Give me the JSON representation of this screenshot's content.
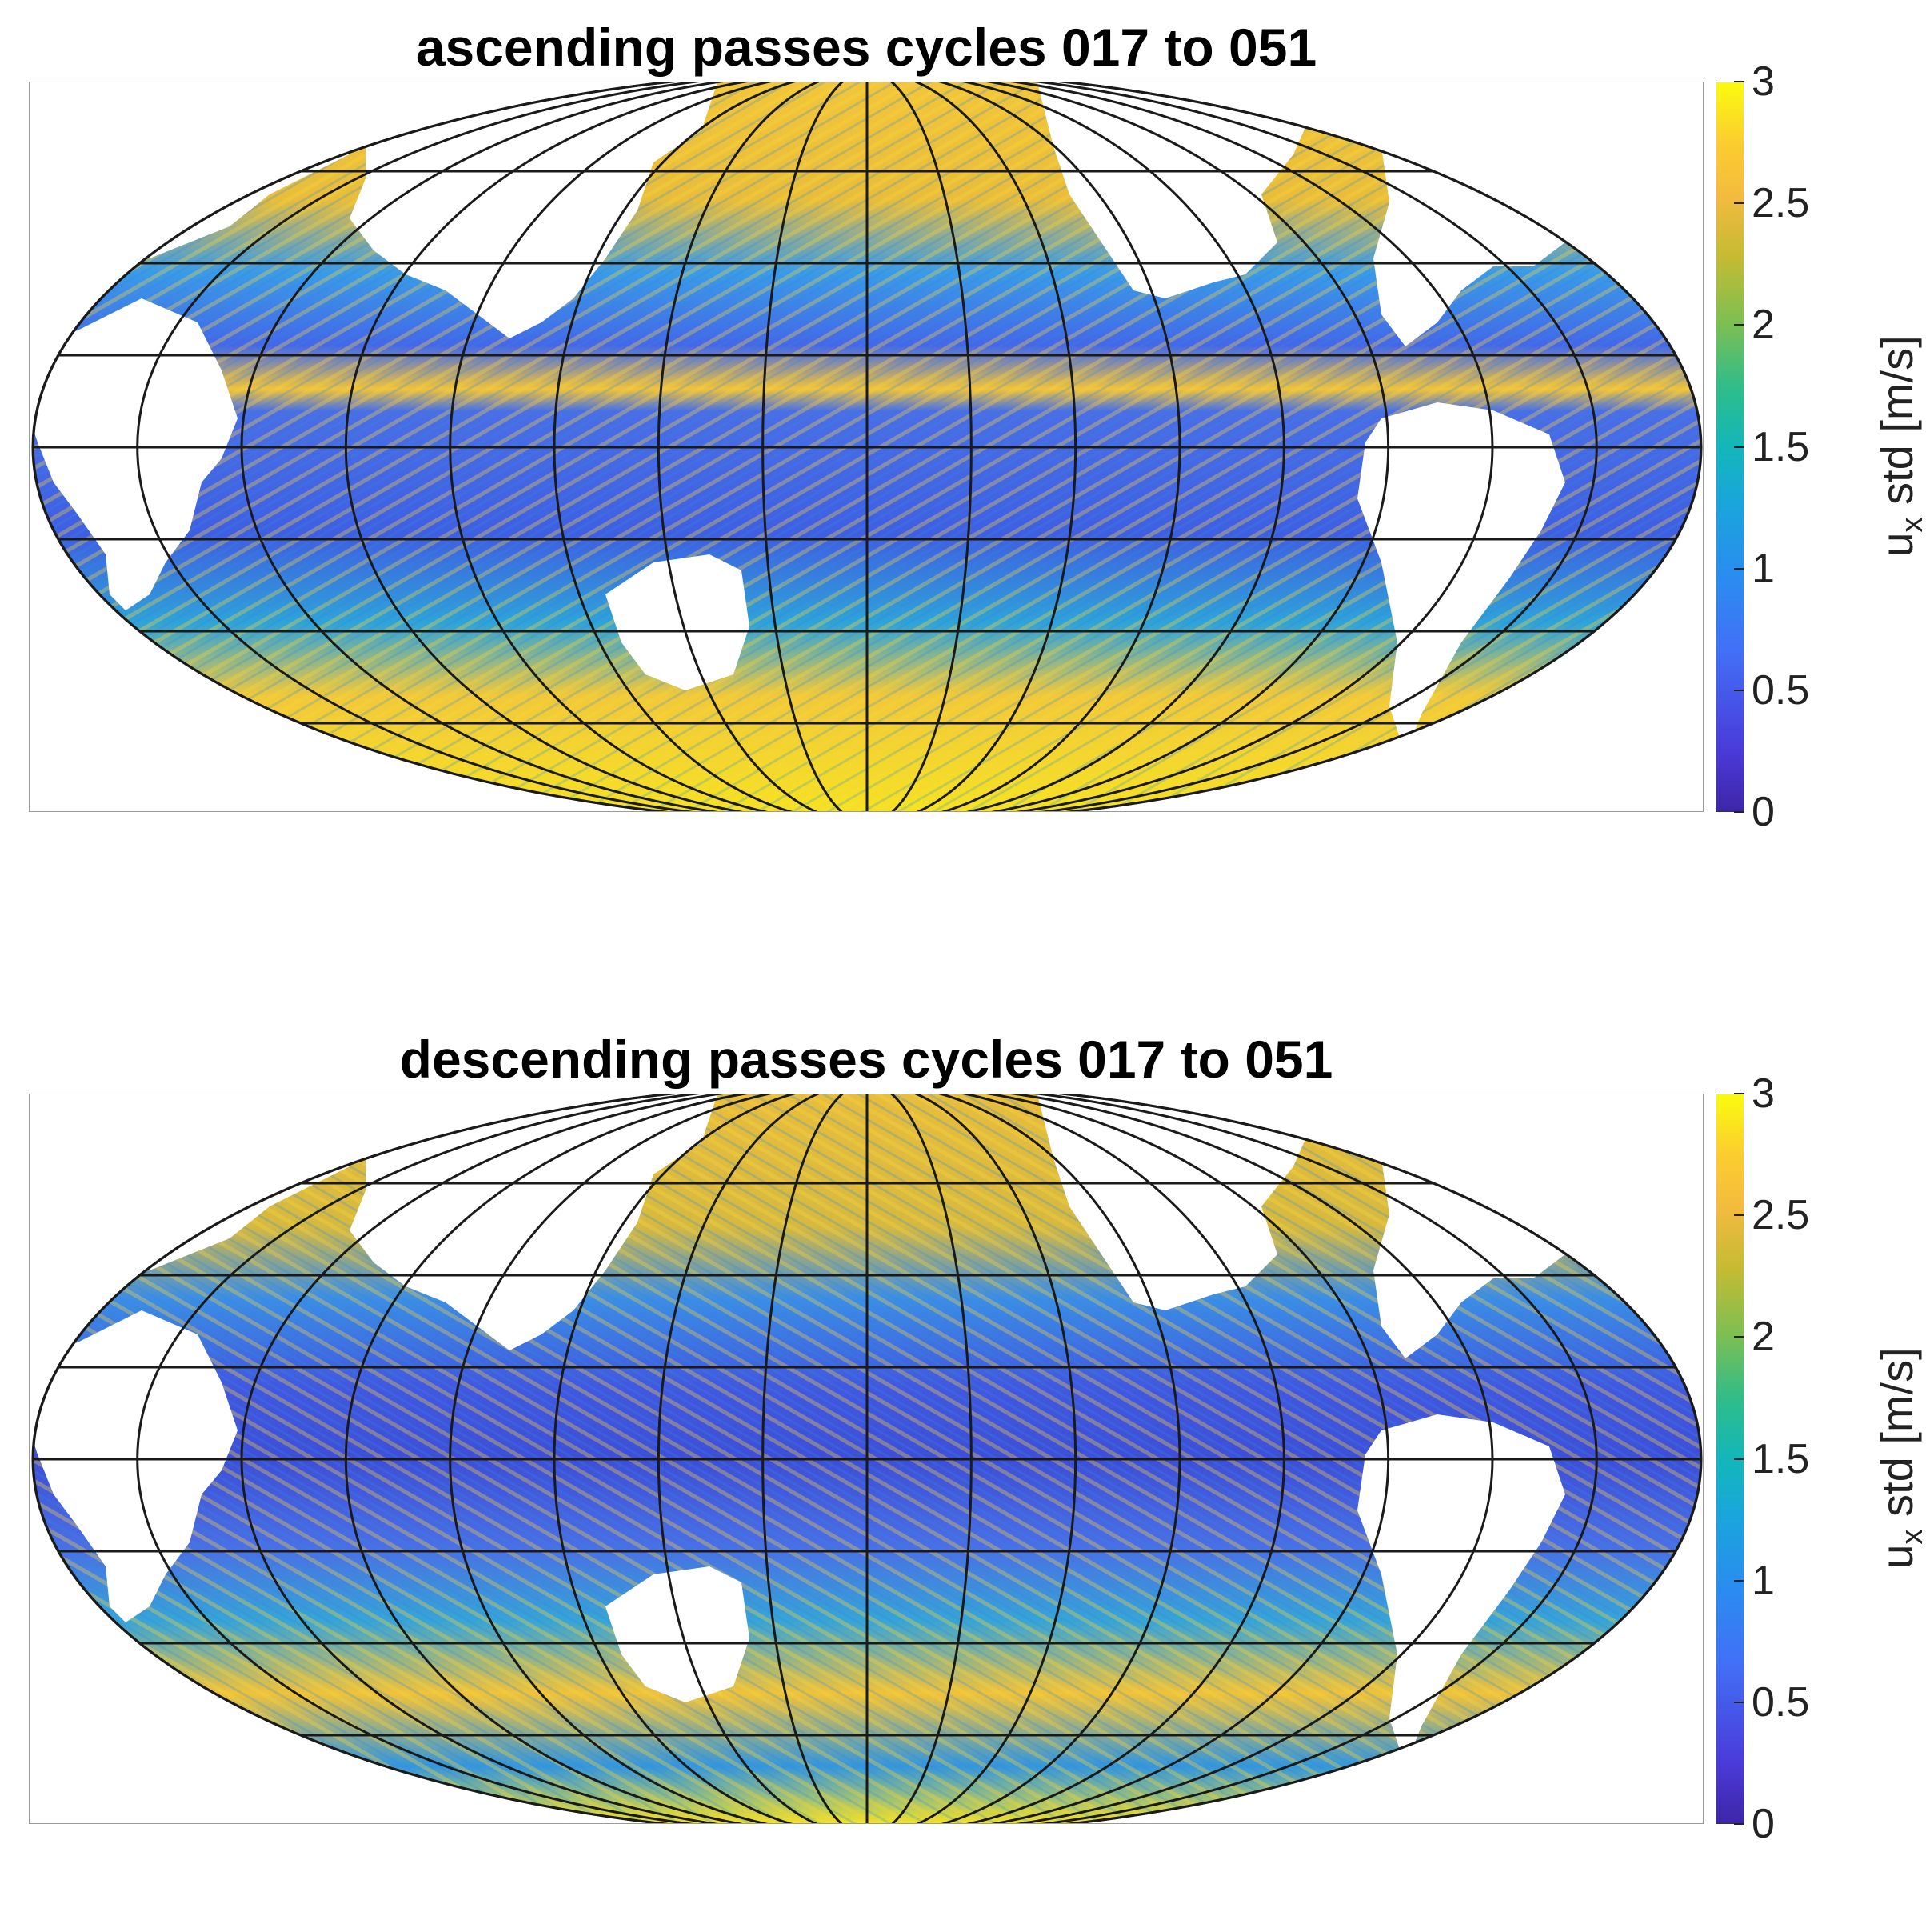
{
  "panels": [
    {
      "title": "ascending passes cycles 017 to 051",
      "colorbar": {
        "label_main": "u",
        "label_sub": "x",
        "label_rest": " std [m/s]",
        "ticks": [
          "0",
          "0.5",
          "1",
          "1.5",
          "2",
          "2.5",
          "3"
        ],
        "range": [
          0,
          3
        ]
      }
    },
    {
      "title": "descending passes cycles 017 to 051",
      "colorbar": {
        "label_main": "u",
        "label_sub": "x",
        "label_rest": " std [m/s]",
        "ticks": [
          "0",
          "0.5",
          "1",
          "1.5",
          "2",
          "2.5",
          "3"
        ],
        "range": [
          0,
          3
        ]
      }
    }
  ],
  "colormap": {
    "name": "parula",
    "low": "#3e26a8",
    "mid": "#13b7ba",
    "high": "#f9fb0e",
    "land": "#ffffff",
    "grid": "#1a1a1a"
  }
}
